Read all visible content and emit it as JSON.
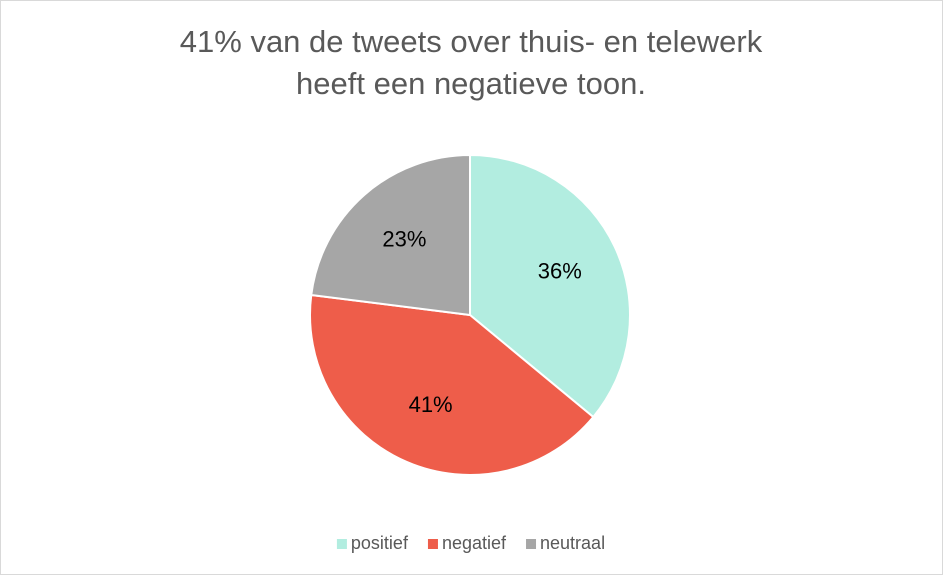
{
  "chart_data": {
    "type": "pie",
    "title": [
      "41% van de tweets over thuis- en telewerk",
      "heeft een negatieve toon."
    ],
    "categories": [
      "positief",
      "negatief",
      "neutraal"
    ],
    "values": [
      36,
      41,
      23
    ],
    "value_labels": [
      "36%",
      "41%",
      "23%"
    ],
    "colors": [
      "#b2ede0",
      "#ee5d4a",
      "#a6a6a6"
    ],
    "legend": "bottom"
  }
}
